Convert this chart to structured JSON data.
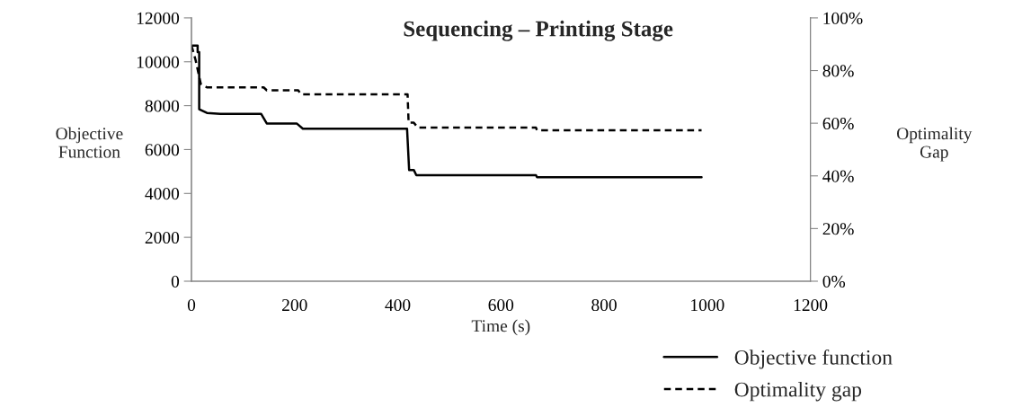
{
  "chart_data": {
    "type": "line",
    "title": "Sequencing – Printing Stage",
    "xlabel": "Time (s)",
    "ylabel": "Objective Function",
    "y2label": "Optimality Gap",
    "xlim": [
      0,
      1200
    ],
    "xticks": [
      0,
      200,
      400,
      600,
      800,
      1000,
      1200
    ],
    "ylim": [
      0,
      12000
    ],
    "yticks": [
      0,
      2000,
      4000,
      6000,
      8000,
      10000,
      12000
    ],
    "y2lim": [
      0,
      100
    ],
    "y2ticks": [
      {
        "value": 0,
        "label": "0%"
      },
      {
        "value": 20,
        "label": "20%"
      },
      {
        "value": 40,
        "label": "40%"
      },
      {
        "value": 60,
        "label": "60%"
      },
      {
        "value": 80,
        "label": "80%"
      },
      {
        "value": 100,
        "label": "100%"
      }
    ],
    "grid": false,
    "legend": "bottom right",
    "marker": "none",
    "series": [
      {
        "name": "Objective function",
        "color": "#000000",
        "line_style": "solid",
        "x": [
          0,
          12,
          12,
          15,
          15,
          30,
          56,
          135,
          146,
          204,
          216,
          418,
          422,
          431,
          436,
          668,
          670,
          989
        ],
        "values": [
          10740,
          10740,
          10440,
          10440,
          7840,
          7670,
          7630,
          7630,
          7190,
          7190,
          6950,
          6950,
          5070,
          5070,
          4830,
          4830,
          4740,
          4740
        ]
      },
      {
        "name": "Optimality gap",
        "color": "#000000",
        "line_style": "dashed",
        "axis": "y2",
        "x": [
          0,
          8,
          18,
          30,
          140,
          146,
          207,
          212,
          419,
          421,
          431,
          439,
          668,
          670,
          989
        ],
        "values": [
          89.5,
          84,
          75,
          73.6,
          73.6,
          72.5,
          72.5,
          71,
          71,
          60.2,
          60.2,
          58.3,
          58.3,
          57.3,
          57.3
        ]
      }
    ]
  }
}
